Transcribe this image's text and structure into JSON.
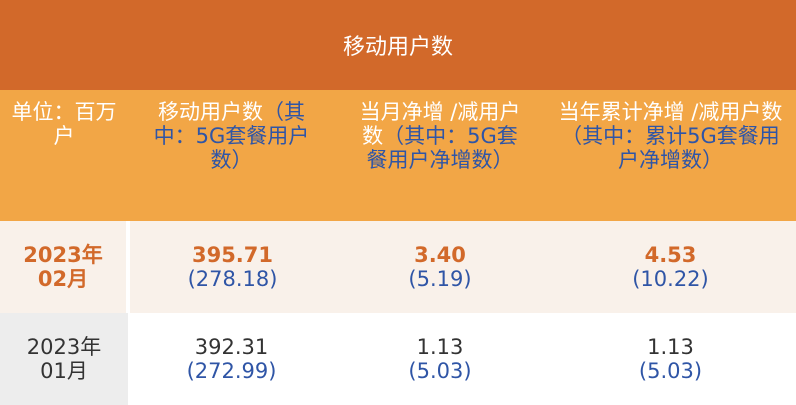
{
  "title": "移动用户数",
  "header": [
    {
      "main": "单位：百万户",
      "sub": ""
    },
    {
      "main": "移动用户数",
      "sub": "（其中：5G套餐用户数）"
    },
    {
      "main": "当月净增 /减用户数",
      "sub": "（其中：5G套餐用户净增数）"
    },
    {
      "main": "当年累计净增 /减用户数",
      "sub": "（其中：累计5G套餐用户净增数）"
    }
  ],
  "rows": [
    {
      "period": "2023年02月",
      "cells": [
        {
          "main": "395.71",
          "sub": "(278.18)"
        },
        {
          "main": "3.40",
          "sub": "(5.19)"
        },
        {
          "main": "4.53",
          "sub": "(10.22)"
        }
      ],
      "highlight": true
    },
    {
      "period": "2023年01月",
      "cells": [
        {
          "main": "392.31",
          "sub": "(272.99)"
        },
        {
          "main": "1.13",
          "sub": "(5.03)"
        },
        {
          "main": "1.13",
          "sub": "(5.03)"
        }
      ],
      "highlight": false
    }
  ],
  "colors": {
    "title_bg": "#D2692A",
    "header_bg": "#F2A646",
    "accent_text": "#D2692A",
    "sub_text": "#2F55A6"
  }
}
